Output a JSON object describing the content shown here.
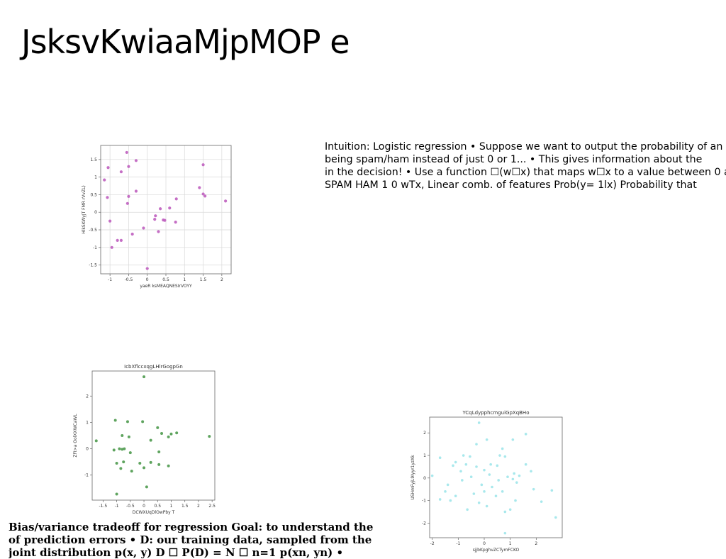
{
  "slide": {
    "title": "JsksvKwiaaMjpMOP e",
    "paragraph_lines": [
      "Intuition: Logistic regression • Suppose we want to output the probability of an",
      "being spam/ham instead of just 0 or 1... • This gives information about the",
      "in the decision! • Use a function ☐(w☐x) that maps w☐x to a value between 0 and",
      "SPAM HAM 1 0 wTx, Linear comb. of features Prob(y= 1lx) Probability that"
    ],
    "bottom_lines": [
      "Bias/variance tradeoff for regression Goal: to understand the",
      "of prediction errors • D: our training data, sampled from the",
      "joint distribution p(x, y) D ☐ P(D) = N ☐ n=1 p(xn, yn) •"
    ]
  },
  "chart_data": [
    {
      "type": "scatter",
      "title": "",
      "xlabel": "yaeR ksMEAQNESIrVOYY",
      "ylabel": "HlkSKWyJT FMR rVvZL)",
      "xlim": [
        -1.25,
        2.25
      ],
      "ylim": [
        -1.75,
        1.9
      ],
      "xticks": [
        -1.0,
        -0.5,
        0.0,
        0.5,
        1.0,
        1.5,
        2.0
      ],
      "yticks": [
        -1.5,
        -1.0,
        -0.5,
        0.0,
        0.5,
        1.0,
        1.5
      ],
      "grid": true,
      "color": "#bf5fbf",
      "points": [
        {
          "x": -0.55,
          "y": 1.7
        },
        {
          "x": -0.3,
          "y": 1.47
        },
        {
          "x": -1.05,
          "y": 1.27
        },
        {
          "x": -0.5,
          "y": 1.3
        },
        {
          "x": -0.7,
          "y": 1.15
        },
        {
          "x": 1.5,
          "y": 1.35
        },
        {
          "x": -1.15,
          "y": 0.92
        },
        {
          "x": -0.3,
          "y": 0.6
        },
        {
          "x": -0.5,
          "y": 0.45
        },
        {
          "x": -1.07,
          "y": 0.42
        },
        {
          "x": 1.4,
          "y": 0.7
        },
        {
          "x": 1.5,
          "y": 0.52
        },
        {
          "x": 1.55,
          "y": 0.46
        },
        {
          "x": 0.78,
          "y": 0.38
        },
        {
          "x": 2.1,
          "y": 0.32
        },
        {
          "x": -0.53,
          "y": 0.25
        },
        {
          "x": 0.35,
          "y": 0.1
        },
        {
          "x": 0.6,
          "y": 0.12
        },
        {
          "x": 0.22,
          "y": -0.1
        },
        {
          "x": 0.2,
          "y": -0.2
        },
        {
          "x": 0.43,
          "y": -0.22
        },
        {
          "x": 0.47,
          "y": -0.23
        },
        {
          "x": 0.76,
          "y": -0.28
        },
        {
          "x": -1.0,
          "y": -0.25
        },
        {
          "x": -0.1,
          "y": -0.45
        },
        {
          "x": 0.3,
          "y": -0.55
        },
        {
          "x": -0.4,
          "y": -0.62
        },
        {
          "x": -0.8,
          "y": -0.8
        },
        {
          "x": -0.7,
          "y": -0.8
        },
        {
          "x": -0.95,
          "y": -1.0
        },
        {
          "x": 0.0,
          "y": -1.6
        }
      ]
    },
    {
      "type": "scatter",
      "title": "IcbXflccxqgLHlrGogpGn",
      "xlabel": "DCWXUqDlOwPby T",
      "ylabel": "ZFI>a OolXXWCaWL",
      "xlim": [
        -1.9,
        2.6
      ],
      "ylim": [
        -1.95,
        2.95
      ],
      "xticks": [
        -1.5,
        -1.0,
        -0.5,
        0.0,
        0.5,
        1.0,
        1.5,
        2.0,
        2.5
      ],
      "yticks": [
        -1,
        0,
        1,
        2
      ],
      "grid": false,
      "color": "#4e9a4e",
      "points": [
        {
          "x": 0.0,
          "y": 2.73
        },
        {
          "x": -1.75,
          "y": 0.3
        },
        {
          "x": -1.05,
          "y": 1.08
        },
        {
          "x": -0.6,
          "y": 1.03
        },
        {
          "x": -0.05,
          "y": 1.03
        },
        {
          "x": 0.5,
          "y": 0.8
        },
        {
          "x": 0.65,
          "y": 0.58
        },
        {
          "x": 1.0,
          "y": 0.56
        },
        {
          "x": 1.2,
          "y": 0.6
        },
        {
          "x": 0.9,
          "y": 0.45
        },
        {
          "x": 2.4,
          "y": 0.47
        },
        {
          "x": -0.8,
          "y": 0.5
        },
        {
          "x": -0.55,
          "y": 0.45
        },
        {
          "x": 0.25,
          "y": 0.32
        },
        {
          "x": -0.9,
          "y": 0.0
        },
        {
          "x": -0.8,
          "y": -0.02
        },
        {
          "x": -0.72,
          "y": 0.0
        },
        {
          "x": -1.1,
          "y": -0.05
        },
        {
          "x": -0.5,
          "y": -0.15
        },
        {
          "x": 0.55,
          "y": -0.12
        },
        {
          "x": -1.0,
          "y": -0.55
        },
        {
          "x": -0.75,
          "y": -0.5
        },
        {
          "x": -0.15,
          "y": -0.55
        },
        {
          "x": 0.25,
          "y": -0.52
        },
        {
          "x": 0.55,
          "y": -0.6
        },
        {
          "x": 0.9,
          "y": -0.65
        },
        {
          "x": 0.0,
          "y": -0.72
        },
        {
          "x": -0.85,
          "y": -0.75
        },
        {
          "x": -0.45,
          "y": -0.85
        },
        {
          "x": 0.1,
          "y": -1.45
        },
        {
          "x": -1.0,
          "y": -1.72
        }
      ]
    },
    {
      "type": "scatter",
      "title": "YCqLdypphcmguiGpXqBHo",
      "xlabel": "sjjbKpghvZCTymFCKO",
      "ylabel": "USHmFyjL9Iyyr1yzXk",
      "xlim": [
        -2.1,
        3.0
      ],
      "ylim": [
        -2.65,
        2.7
      ],
      "xticks": [
        -2,
        -1,
        0,
        1,
        2
      ],
      "yticks": [
        -2,
        -1,
        0,
        1,
        2
      ],
      "grid": false,
      "color": "#9fe6ea",
      "points": [
        {
          "x": -0.2,
          "y": 2.45
        },
        {
          "x": 1.6,
          "y": 1.95
        },
        {
          "x": 1.1,
          "y": 1.7
        },
        {
          "x": 0.1,
          "y": 1.7
        },
        {
          "x": -1.7,
          "y": 0.9
        },
        {
          "x": -0.3,
          "y": 1.5
        },
        {
          "x": 0.7,
          "y": 1.3
        },
        {
          "x": -0.8,
          "y": 1.0
        },
        {
          "x": -0.55,
          "y": 0.95
        },
        {
          "x": 0.6,
          "y": 1.0
        },
        {
          "x": 0.8,
          "y": 0.95
        },
        {
          "x": -1.1,
          "y": 0.7
        },
        {
          "x": -1.2,
          "y": 0.55
        },
        {
          "x": -0.7,
          "y": 0.6
        },
        {
          "x": -0.3,
          "y": 0.5
        },
        {
          "x": 0.25,
          "y": 0.6
        },
        {
          "x": 0.5,
          "y": 0.55
        },
        {
          "x": 1.6,
          "y": 0.6
        },
        {
          "x": 1.8,
          "y": 0.3
        },
        {
          "x": 0.0,
          "y": 0.35
        },
        {
          "x": -0.9,
          "y": 0.3
        },
        {
          "x": 1.15,
          "y": 0.2
        },
        {
          "x": 1.35,
          "y": 0.1
        },
        {
          "x": -2.0,
          "y": 0.1
        },
        {
          "x": -0.5,
          "y": 0.05
        },
        {
          "x": 0.2,
          "y": 0.15
        },
        {
          "x": 0.9,
          "y": 0.05
        },
        {
          "x": 1.1,
          "y": -0.05
        },
        {
          "x": -0.85,
          "y": -0.1
        },
        {
          "x": 0.55,
          "y": -0.1
        },
        {
          "x": 1.25,
          "y": -0.2
        },
        {
          "x": -1.4,
          "y": -0.3
        },
        {
          "x": -0.1,
          "y": -0.3
        },
        {
          "x": 0.3,
          "y": -0.4
        },
        {
          "x": 1.9,
          "y": -0.5
        },
        {
          "x": 2.6,
          "y": -0.55
        },
        {
          "x": -1.5,
          "y": -0.6
        },
        {
          "x": 0.0,
          "y": -0.6
        },
        {
          "x": 0.7,
          "y": -0.6
        },
        {
          "x": -1.7,
          "y": -0.95
        },
        {
          "x": -1.1,
          "y": -0.8
        },
        {
          "x": -0.4,
          "y": -0.7
        },
        {
          "x": 0.45,
          "y": -0.8
        },
        {
          "x": -1.3,
          "y": -1.0
        },
        {
          "x": -0.2,
          "y": -1.1
        },
        {
          "x": 1.2,
          "y": -1.0
        },
        {
          "x": 2.2,
          "y": -1.05
        },
        {
          "x": 0.1,
          "y": -1.25
        },
        {
          "x": -0.65,
          "y": -1.4
        },
        {
          "x": 1.0,
          "y": -1.4
        },
        {
          "x": 2.75,
          "y": -1.75
        },
        {
          "x": 0.8,
          "y": -1.5
        },
        {
          "x": 0.8,
          "y": -2.45
        }
      ]
    }
  ]
}
